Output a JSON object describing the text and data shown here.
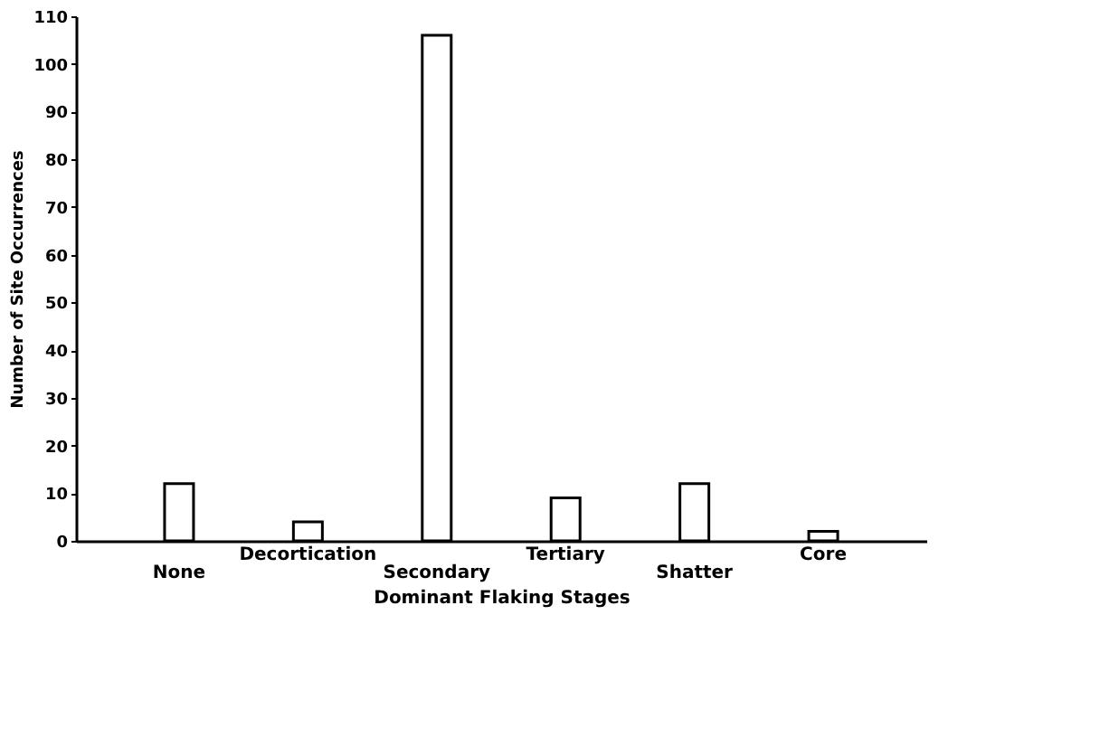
{
  "chart_data": {
    "type": "bar",
    "xlabel": "Dominant Flaking Stages",
    "ylabel": "Number of Site Occurrences",
    "categories": [
      "None",
      "Decortication",
      "Secondary",
      "Tertiary",
      "Shatter",
      "Core"
    ],
    "values": [
      12,
      4,
      106,
      9,
      12,
      2
    ],
    "color": "#ffffff",
    "ylim": [
      0,
      110
    ],
    "yticks": [
      0,
      10,
      20,
      30,
      40,
      50,
      60,
      70,
      80,
      90,
      100,
      110
    ],
    "grid": false
  }
}
